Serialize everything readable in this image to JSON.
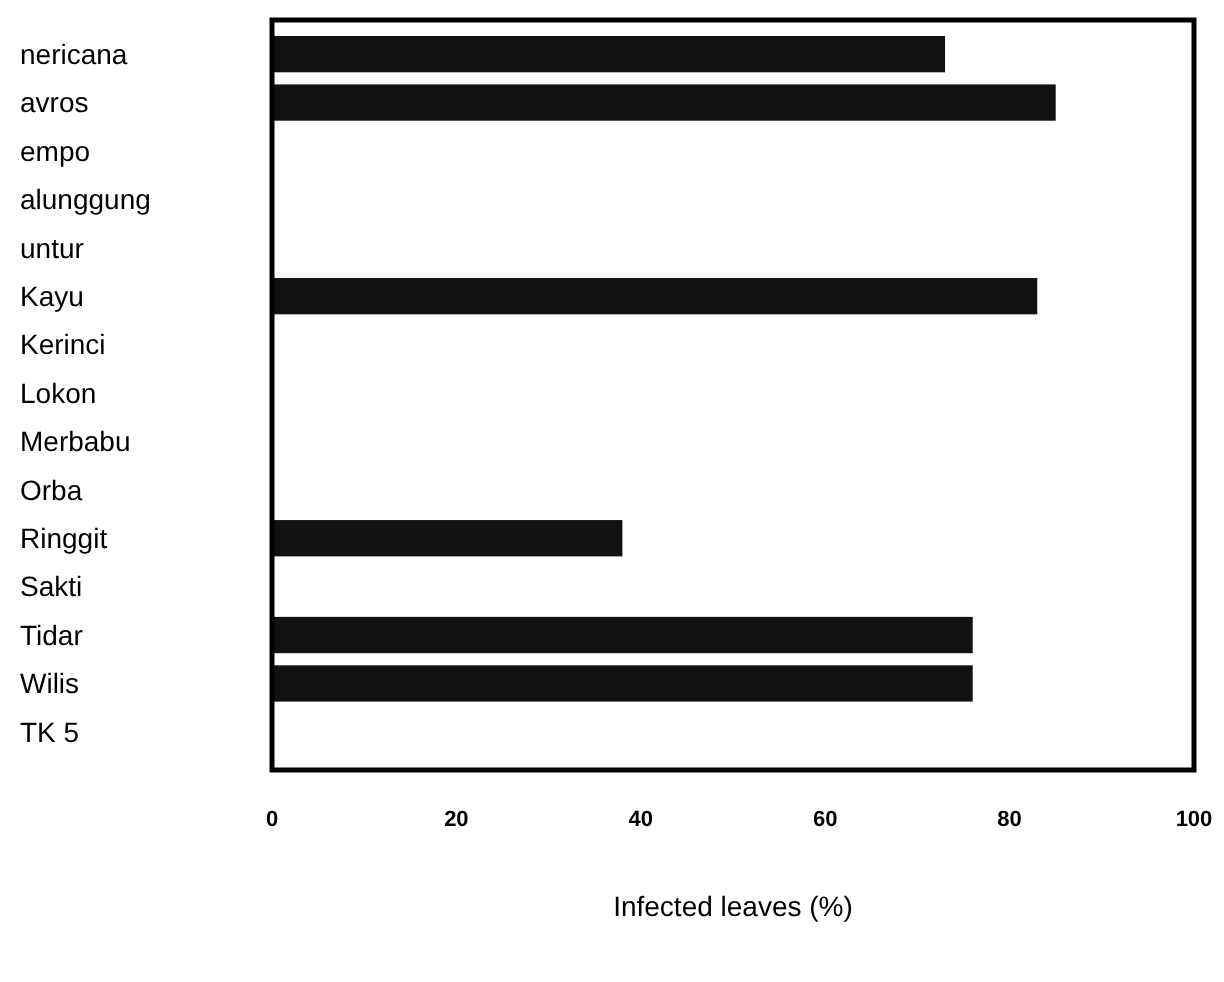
{
  "chart_data": {
    "type": "bar",
    "orientation": "horizontal",
    "xlabel": "Infected leaves (%)",
    "categories": [
      "nericana",
      "avros",
      "empo",
      "alunggung",
      "untur",
      "Kayu",
      "Kerinci",
      "Lokon",
      "Merbabu",
      "Orba",
      "Ringgit",
      "Sakti",
      "Tidar",
      "Wilis",
      "TK 5"
    ],
    "values": [
      73,
      85,
      0,
      0,
      0,
      83,
      0,
      0,
      0,
      0,
      38,
      0,
      76,
      76,
      0
    ],
    "color": "#111111",
    "xlim": [
      0,
      100
    ],
    "xticks": [
      0,
      20,
      40,
      60,
      80,
      100
    ]
  }
}
